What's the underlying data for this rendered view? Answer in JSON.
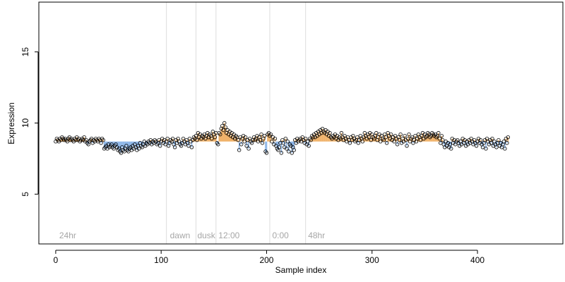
{
  "chart_data": {
    "type": "scatter",
    "xlabel": "Sample index",
    "ylabel": "Expression",
    "xlim": [
      -16,
      481
    ],
    "ylim": [
      1.5,
      18.5
    ],
    "x_ticks": [
      0,
      100,
      200,
      300,
      400
    ],
    "y_ticks": [
      5,
      10,
      15
    ],
    "baseline": 8.7,
    "colors": {
      "above": "#f0b26a",
      "below": "#8db6e8",
      "point_stroke": "#000000",
      "vline": "#dddddd",
      "annotation": "#a6a6a6"
    },
    "annotations": [
      {
        "x": 2,
        "text": "24hr"
      },
      {
        "x": 107,
        "text": "dawn"
      },
      {
        "x": 133,
        "text": "dusk"
      },
      {
        "x": 153,
        "text": "12:00"
      },
      {
        "x": 204,
        "text": "0:00"
      },
      {
        "x": 238,
        "text": "48hr"
      }
    ],
    "vlines": [
      105,
      133,
      152,
      203,
      237
    ],
    "points_y": [
      8.7,
      8.9,
      8.8,
      8.7,
      8.9,
      8.8,
      9.0,
      8.9,
      8.8,
      8.9,
      8.8,
      8.7,
      8.9,
      9.0,
      8.8,
      8.9,
      8.8,
      8.7,
      8.9,
      8.8,
      9.0,
      8.8,
      8.9,
      8.7,
      8.8,
      8.9,
      8.8,
      9.0,
      8.7,
      8.8,
      8.6,
      8.5,
      8.7,
      8.8,
      8.9,
      8.6,
      8.8,
      8.7,
      8.9,
      8.8,
      8.7,
      8.9,
      8.8,
      8.6,
      8.9,
      8.8,
      8.2,
      8.3,
      8.4,
      8.2,
      8.5,
      8.3,
      8.4,
      8.5,
      8.3,
      8.2,
      8.4,
      8.5,
      8.3,
      8.1,
      8.2,
      8.0,
      7.9,
      8.3,
      8.1,
      8.0,
      8.2,
      8.4,
      8.1,
      8.0,
      8.2,
      8.3,
      8.1,
      8.4,
      8.2,
      8.5,
      8.3,
      8.1,
      8.4,
      8.2,
      8.6,
      8.4,
      8.3,
      8.5,
      8.7,
      8.4,
      8.6,
      8.5,
      8.7,
      8.6,
      8.8,
      8.5,
      8.7,
      8.6,
      8.8,
      8.7,
      8.5,
      8.6,
      8.8,
      8.4,
      8.7,
      8.9,
      8.6,
      8.8,
      8.5,
      8.7,
      8.9,
      8.4,
      8.6,
      8.8,
      8.7,
      8.9,
      8.5,
      8.3,
      8.8,
      8.6,
      8.9,
      8.7,
      8.5,
      8.4,
      8.6,
      8.9,
      8.7,
      8.5,
      8.8,
      8.6,
      8.4,
      8.9,
      8.7,
      8.3,
      8.8,
      9.0,
      8.9,
      9.1,
      8.8,
      9.3,
      9.0,
      9.2,
      8.9,
      9.1,
      9.0,
      9.2,
      8.9,
      9.1,
      9.3,
      9.0,
      9.2,
      9.1,
      8.9,
      9.4,
      9.2,
      9.0,
      9.3,
      8.6,
      8.5,
      9.3,
      9.2,
      9.6,
      9.8,
      9.5,
      10.0,
      9.7,
      9.3,
      9.5,
      9.2,
      9.4,
      9.1,
      9.3,
      9.0,
      9.2,
      8.9,
      9.1,
      9.0,
      8.8,
      8.1,
      9.0,
      8.5,
      8.9,
      9.1,
      8.7,
      9.0,
      8.4,
      8.8,
      8.2,
      8.9,
      8.7,
      8.6,
      8.8,
      9.0,
      8.8,
      8.9,
      9.1,
      8.7,
      9.0,
      8.8,
      9.2,
      8.6,
      8.9,
      9.1,
      8.0,
      7.9,
      9.2,
      9.3,
      9.1,
      9.2,
      8.7,
      9.0,
      8.5,
      8.9,
      8.4,
      8.2,
      8.1,
      8.3,
      8.6,
      7.9,
      8.8,
      8.6,
      8.3,
      8.9,
      8.2,
      8.7,
      8.0,
      8.5,
      8.4,
      7.9,
      8.3,
      8.1,
      8.8,
      8.6,
      8.9,
      8.7,
      8.8,
      8.9,
      8.7,
      9.0,
      8.8,
      8.6,
      8.9,
      8.5,
      8.7,
      8.4,
      8.9,
      8.8,
      9.1,
      9.0,
      9.2,
      9.0,
      9.3,
      9.1,
      9.4,
      9.2,
      9.5,
      9.3,
      9.6,
      9.4,
      9.3,
      9.5,
      9.2,
      9.4,
      9.1,
      9.3,
      9.0,
      8.9,
      9.1,
      9.0,
      9.2,
      8.9,
      9.1,
      8.8,
      9.0,
      8.9,
      9.3,
      9.0,
      8.8,
      9.1,
      8.9,
      8.7,
      9.0,
      8.8,
      8.6,
      9.0,
      8.8,
      9.1,
      8.9,
      8.7,
      8.8,
      9.0,
      8.6,
      8.8,
      9.1,
      8.9,
      8.7,
      9.0,
      9.3,
      9.1,
      8.9,
      9.2,
      9.0,
      9.3,
      8.8,
      9.2,
      9.0,
      8.9,
      9.1,
      9.3,
      8.8,
      9.0,
      9.2,
      8.7,
      9.1,
      8.9,
      8.8,
      9.2,
      9.0,
      8.6,
      9.3,
      9.1,
      8.9,
      9.2,
      8.8,
      9.0,
      8.7,
      9.1,
      8.9,
      8.5,
      9.0,
      8.8,
      9.2,
      8.6,
      8.9,
      8.7,
      9.1,
      8.8,
      8.4,
      8.9,
      9.2,
      8.7,
      8.9,
      9.0,
      8.6,
      8.8,
      9.1,
      8.7,
      8.9,
      9.2,
      9.0,
      8.8,
      9.1,
      9.3,
      8.9,
      9.2,
      9.0,
      9.1,
      9.3,
      9.2,
      9.0,
      9.1,
      9.3,
      9.2,
      9.1,
      9.2,
      9.0,
      9.1,
      9.3,
      8.9,
      8.6,
      9.1,
      8.8,
      8.5,
      8.3,
      8.7,
      8.4,
      8.6,
      8.3,
      8.5,
      8.2,
      8.9,
      8.6,
      8.8,
      8.5,
      8.7,
      8.8,
      8.6,
      8.4,
      8.7,
      8.5,
      8.9,
      8.6,
      8.8,
      8.4,
      8.7,
      8.5,
      8.8,
      8.6,
      8.9,
      8.7,
      8.5,
      8.8,
      8.6,
      8.4,
      8.7,
      8.9,
      8.6,
      8.8,
      8.5,
      8.3,
      8.6,
      8.8,
      8.2,
      8.9,
      8.7,
      8.5,
      8.8,
      8.6,
      8.9,
      8.4,
      8.7,
      8.5,
      8.3,
      8.6,
      8.8,
      8.4,
      8.6,
      8.3,
      8.5,
      8.7,
      8.2,
      8.9,
      8.6,
      9.0
    ]
  }
}
